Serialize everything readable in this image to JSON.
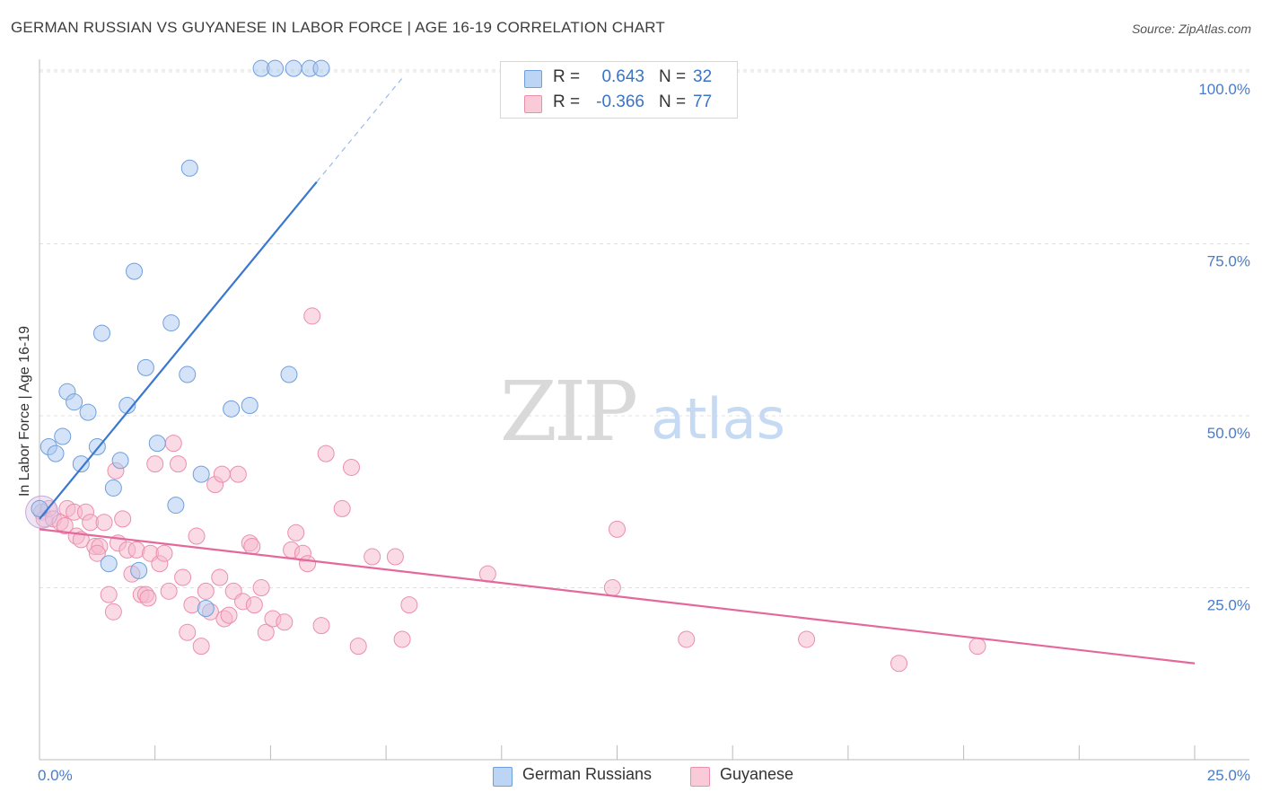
{
  "title": "GERMAN RUSSIAN VS GUYANESE IN LABOR FORCE | AGE 16-19 CORRELATION CHART",
  "source": "Source: ZipAtlas.com",
  "watermark": {
    "zip": "ZIP",
    "atlas": "atlas"
  },
  "legend": {
    "r_label": "R =",
    "n_label": "N =",
    "rows": [
      {
        "r": "0.643",
        "n": "32",
        "color": "#a9c8f0"
      },
      {
        "r": "-0.366",
        "n": "77",
        "color": "#f6b8cb"
      }
    ]
  },
  "bottom_legend": [
    "German Russians",
    "Guyanese"
  ],
  "chart_data": {
    "type": "scatter",
    "title": "GERMAN RUSSIAN VS GUYANESE IN LABOR FORCE | AGE 16-19 CORRELATION CHART",
    "xlabel": "",
    "ylabel": "In Labor Force | Age 16-19",
    "xlim": [
      0,
      25
    ],
    "ylim": [
      0,
      105
    ],
    "x_tick_labels": [
      "0.0%",
      "25.0%"
    ],
    "y_ticks": [
      25,
      50,
      75,
      100
    ],
    "y_tick_labels": [
      "25.0%",
      "50.0%",
      "75.0%",
      "100.0%"
    ],
    "grid": true,
    "legend_position": "top-center",
    "series": [
      {
        "name": "German Russians",
        "color": "#a9c8f0",
        "stroke": "#6f9fdc",
        "line_color": "#3a78d0",
        "trend": {
          "x0": 0.0,
          "y0": 35.0,
          "x1": 6.0,
          "y1": 84.0,
          "dash_x1": 7.9,
          "dash_y1": 99.5
        },
        "points": [
          [
            0.0,
            36.5
          ],
          [
            0.2,
            45.5
          ],
          [
            0.35,
            44.5
          ],
          [
            0.5,
            47.0
          ],
          [
            0.6,
            53.5
          ],
          [
            0.75,
            52.0
          ],
          [
            0.9,
            43.0
          ],
          [
            1.05,
            50.5
          ],
          [
            1.25,
            45.5
          ],
          [
            1.35,
            62.0
          ],
          [
            1.5,
            28.5
          ],
          [
            1.6,
            39.5
          ],
          [
            1.75,
            43.5
          ],
          [
            1.9,
            51.5
          ],
          [
            2.05,
            71.0
          ],
          [
            2.15,
            27.5
          ],
          [
            2.3,
            57.0
          ],
          [
            2.55,
            46.0
          ],
          [
            2.85,
            63.5
          ],
          [
            2.95,
            37.0
          ],
          [
            3.2,
            56.0
          ],
          [
            3.25,
            86.0
          ],
          [
            3.5,
            41.5
          ],
          [
            3.6,
            22.0
          ],
          [
            4.15,
            51.0
          ],
          [
            4.55,
            51.5
          ],
          [
            4.8,
            100.5
          ],
          [
            5.1,
            100.5
          ],
          [
            5.4,
            56.0
          ],
          [
            5.5,
            100.5
          ],
          [
            5.85,
            100.5
          ],
          [
            6.1,
            100.5
          ]
        ]
      },
      {
        "name": "Guyanese",
        "color": "#f6b8cb",
        "stroke": "#ec8eab",
        "line_color": "#e4689a",
        "trend": {
          "x0": 0.0,
          "y0": 33.5,
          "x1": 25.0,
          "y1": 14.0
        },
        "points": [
          [
            0.05,
            36.0
          ],
          [
            0.1,
            35.0
          ],
          [
            0.2,
            36.5
          ],
          [
            0.3,
            35.0
          ],
          [
            0.45,
            34.5
          ],
          [
            0.6,
            36.5
          ],
          [
            0.75,
            36.0
          ],
          [
            0.8,
            32.5
          ],
          [
            0.9,
            32.0
          ],
          [
            1.0,
            36.0
          ],
          [
            1.1,
            34.5
          ],
          [
            1.2,
            31.0
          ],
          [
            1.3,
            31.0
          ],
          [
            1.4,
            34.5
          ],
          [
            1.5,
            24.0
          ],
          [
            1.6,
            21.5
          ],
          [
            1.65,
            42.0
          ],
          [
            1.7,
            31.5
          ],
          [
            1.8,
            35.0
          ],
          [
            1.9,
            30.5
          ],
          [
            2.0,
            27.0
          ],
          [
            2.1,
            30.5
          ],
          [
            2.2,
            24.0
          ],
          [
            2.3,
            24.0
          ],
          [
            2.4,
            30.0
          ],
          [
            2.5,
            43.0
          ],
          [
            2.6,
            28.5
          ],
          [
            2.7,
            30.0
          ],
          [
            2.8,
            24.5
          ],
          [
            2.9,
            46.0
          ],
          [
            3.0,
            43.0
          ],
          [
            3.1,
            26.5
          ],
          [
            3.2,
            18.5
          ],
          [
            3.3,
            22.5
          ],
          [
            3.4,
            32.5
          ],
          [
            3.5,
            16.5
          ],
          [
            3.6,
            24.5
          ],
          [
            3.7,
            21.5
          ],
          [
            3.8,
            40.0
          ],
          [
            3.9,
            26.5
          ],
          [
            4.0,
            20.5
          ],
          [
            4.1,
            21.0
          ],
          [
            4.2,
            24.5
          ],
          [
            4.3,
            41.5
          ],
          [
            4.4,
            23.0
          ],
          [
            4.55,
            31.5
          ],
          [
            4.65,
            22.5
          ],
          [
            4.8,
            25.0
          ],
          [
            4.9,
            18.5
          ],
          [
            5.05,
            20.5
          ],
          [
            5.3,
            20.0
          ],
          [
            5.45,
            30.5
          ],
          [
            5.55,
            33.0
          ],
          [
            5.7,
            30.0
          ],
          [
            5.8,
            28.5
          ],
          [
            5.9,
            64.5
          ],
          [
            6.1,
            19.5
          ],
          [
            6.2,
            44.5
          ],
          [
            6.55,
            36.5
          ],
          [
            6.75,
            42.5
          ],
          [
            6.9,
            16.5
          ],
          [
            7.2,
            29.5
          ],
          [
            7.7,
            29.5
          ],
          [
            7.85,
            17.5
          ],
          [
            8.0,
            22.5
          ],
          [
            9.7,
            27.0
          ],
          [
            12.4,
            25.0
          ],
          [
            12.5,
            33.5
          ],
          [
            14.0,
            17.5
          ],
          [
            16.6,
            17.5
          ],
          [
            18.6,
            14.0
          ],
          [
            20.3,
            16.5
          ],
          [
            4.6,
            31.0
          ],
          [
            3.95,
            41.5
          ],
          [
            2.35,
            23.5
          ],
          [
            1.25,
            30.0
          ],
          [
            0.55,
            34.0
          ]
        ]
      }
    ]
  }
}
